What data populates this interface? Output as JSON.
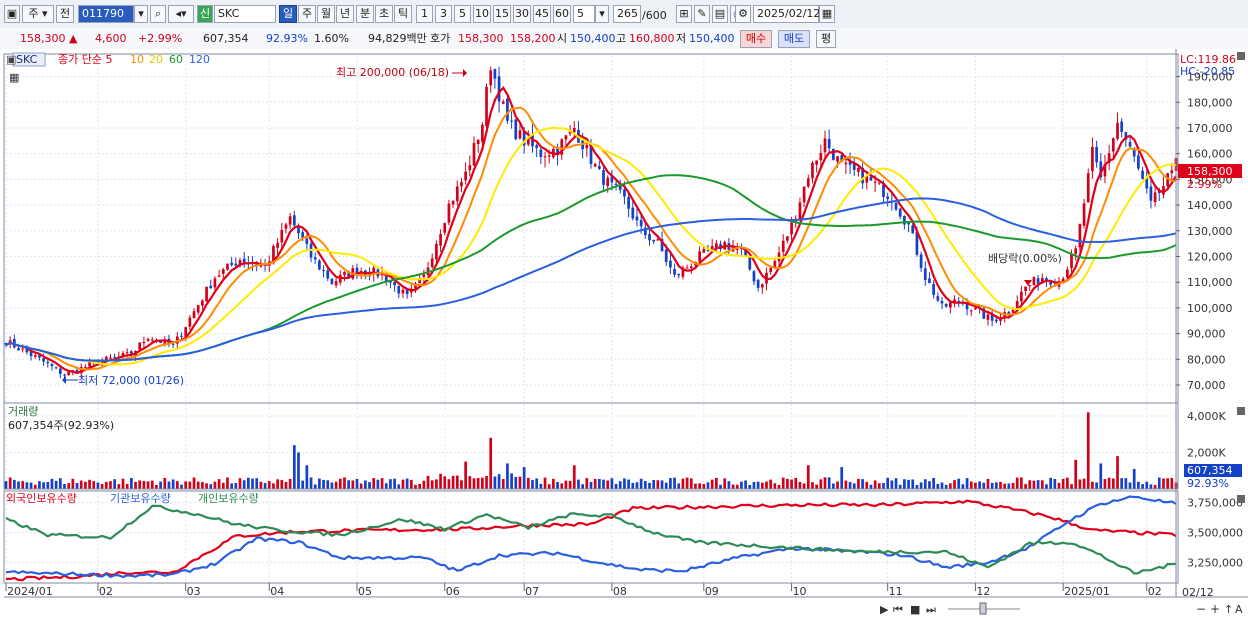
{
  "toolbar": {
    "b_period1": "주",
    "b_prev": "전",
    "code": "011790",
    "b_info": "신",
    "name": "SKC",
    "p_day": "일",
    "p_week": "주",
    "p_month": "월",
    "p_year": "년",
    "p_min": "분",
    "p_sec": "초",
    "p_tick": "틱",
    "n1": "1",
    "n3": "3",
    "n5": "5",
    "n10": "10",
    "n15": "15",
    "n30": "30",
    "n45": "45",
    "n60": "60",
    "nsel": "5",
    "count": "265",
    "count_total": "/600",
    "date": "2025/02/12"
  },
  "quote": {
    "price": "158,300 ▲",
    "change": "4,600",
    "change_pct": "+2.99%",
    "volume": "607,354",
    "vol_ratio": "92.93%",
    "turnover": "1.60%",
    "amount": "94,829백만",
    "bid_label": "호가",
    "ask": "158,300",
    "bid": "158,200",
    "open_label": "시",
    "open": "150,400",
    "high_label": "고",
    "high": "160,800",
    "low_label": "저",
    "low": "150,400",
    "buy": "매수",
    "sell": "매도",
    "eval": "평"
  },
  "colors": {
    "up": "#d0021b",
    "down": "#1540c8",
    "ma5": "#e0001a",
    "ma10": "#ff8c00",
    "ma20": "#ffea00",
    "ma60": "#1a9a2a",
    "ma120": "#2b5fe0"
  },
  "chart_data": {
    "type": "candlestick",
    "title": "SKC",
    "legend": [
      {
        "name": "종가 단순 5",
        "color": "#e0001a"
      },
      {
        "name": "10",
        "color": "#ff8c00"
      },
      {
        "name": "20",
        "color": "#e6c800"
      },
      {
        "name": "60",
        "color": "#1a9a2a"
      },
      {
        "name": "120",
        "color": "#2b5fe0"
      }
    ],
    "ylim": [
      63000,
      198000
    ],
    "yticks": [
      190000,
      180000,
      170000,
      160000,
      150000,
      140000,
      130000,
      120000,
      110000,
      100000,
      90000,
      80000,
      70000
    ],
    "ytick_labels": [
      "190,000",
      "180,000",
      "170,000",
      "160,000",
      "150,000",
      "140,000",
      "130,000",
      "120,000",
      "110,000",
      "100,000",
      "90,000",
      "80,000",
      "70,000"
    ],
    "lc_label": "LC:119.86",
    "hc_label": "HC:-20.85",
    "last_price_label": "158,300",
    "last_pct_label": "2.99%",
    "high_annotation": "최고 200,000 (06/18)",
    "low_annotation": "최저 72,000 (01/26)",
    "dividend_annotation": "배당락(0.00%)",
    "x_months": [
      "2024/01",
      "02",
      "03",
      "04",
      "05",
      "06",
      "07",
      "08",
      "09",
      "10",
      "11",
      "12",
      "2025/01",
      "02"
    ],
    "x_right_label": "02/12",
    "close_anchors": [
      [
        0,
        87000
      ],
      [
        8,
        80000
      ],
      [
        14,
        74000
      ],
      [
        22,
        79000
      ],
      [
        30,
        82000
      ],
      [
        34,
        89000
      ],
      [
        40,
        85000
      ],
      [
        44,
        96000
      ],
      [
        50,
        112000
      ],
      [
        56,
        119000
      ],
      [
        62,
        116000
      ],
      [
        68,
        135000
      ],
      [
        73,
        120000
      ],
      [
        78,
        110000
      ],
      [
        84,
        115000
      ],
      [
        90,
        113000
      ],
      [
        96,
        104000
      ],
      [
        100,
        112000
      ],
      [
        106,
        140000
      ],
      [
        110,
        152000
      ],
      [
        114,
        172000
      ],
      [
        116,
        195000
      ],
      [
        120,
        172000
      ],
      [
        124,
        165000
      ],
      [
        128,
        160000
      ],
      [
        132,
        162000
      ],
      [
        136,
        170000
      ],
      [
        142,
        152000
      ],
      [
        148,
        142000
      ],
      [
        152,
        130000
      ],
      [
        156,
        125000
      ],
      [
        160,
        112000
      ],
      [
        166,
        120000
      ],
      [
        172,
        125000
      ],
      [
        176,
        122000
      ],
      [
        180,
        108000
      ],
      [
        184,
        118000
      ],
      [
        188,
        132000
      ],
      [
        192,
        152000
      ],
      [
        196,
        165000
      ],
      [
        200,
        155000
      ],
      [
        204,
        152000
      ],
      [
        208,
        148000
      ],
      [
        212,
        143000
      ],
      [
        216,
        132000
      ],
      [
        220,
        112000
      ],
      [
        224,
        100000
      ],
      [
        228,
        103000
      ],
      [
        232,
        99000
      ],
      [
        236,
        95000
      ],
      [
        240,
        99000
      ],
      [
        244,
        108000
      ],
      [
        248,
        112000
      ],
      [
        252,
        110000
      ],
      [
        256,
        122000
      ],
      [
        260,
        160000
      ],
      [
        262,
        150000
      ],
      [
        266,
        172000
      ],
      [
        270,
        158000
      ],
      [
        274,
        140000
      ],
      [
        278,
        150000
      ],
      [
        280,
        152000
      ]
    ],
    "volume": {
      "label": "거래량",
      "current": "607,354주(92.93%)",
      "ylim": [
        0,
        4600000
      ],
      "yticks": [
        4000000,
        2000000
      ],
      "ytick_labels": [
        "4,000K",
        "2,000K"
      ],
      "last_label": "607,354",
      "last_pct": "92.93%",
      "spikes": [
        [
          69,
          2400000
        ],
        [
          70,
          2000000
        ],
        [
          72,
          1300000
        ],
        [
          110,
          1500000
        ],
        [
          116,
          2800000
        ],
        [
          120,
          1400000
        ],
        [
          124,
          1200000
        ],
        [
          136,
          1300000
        ],
        [
          192,
          1300000
        ],
        [
          200,
          1200000
        ],
        [
          256,
          1600000
        ],
        [
          259,
          4200000
        ],
        [
          262,
          1400000
        ],
        [
          266,
          1800000
        ],
        [
          270,
          1100000
        ]
      ]
    },
    "holdings": {
      "legend": [
        "외국인보유수량",
        "기관보유수량",
        "개인보유수량"
      ],
      "colors": [
        "#e0001a",
        "#2b5fe0",
        "#2e8b57"
      ],
      "ylim": [
        3080000,
        3830000
      ],
      "yticks": [
        3750000,
        3500000,
        3250000
      ],
      "ytick_labels": [
        "3,750,000",
        "3,500,000",
        "3,250,000"
      ],
      "series": [
        {
          "name": "외국인보유수량",
          "points": [
            [
              0,
              3110000
            ],
            [
              15,
              3130000
            ],
            [
              30,
              3170000
            ],
            [
              40,
              3170000
            ],
            [
              55,
              3470000
            ],
            [
              70,
              3510000
            ],
            [
              90,
              3520000
            ],
            [
              110,
              3530000
            ],
            [
              125,
              3560000
            ],
            [
              140,
              3570000
            ],
            [
              150,
              3700000
            ],
            [
              160,
              3710000
            ],
            [
              175,
              3720000
            ],
            [
              190,
              3730000
            ],
            [
              210,
              3730000
            ],
            [
              230,
              3760000
            ],
            [
              240,
              3700000
            ],
            [
              250,
              3630000
            ],
            [
              260,
              3520000
            ],
            [
              270,
              3500000
            ],
            [
              280,
              3480000
            ]
          ]
        },
        {
          "name": "기관보유수량",
          "points": [
            [
              0,
              3170000
            ],
            [
              10,
              3160000
            ],
            [
              20,
              3150000
            ],
            [
              30,
              3140000
            ],
            [
              40,
              3150000
            ],
            [
              50,
              3240000
            ],
            [
              60,
              3450000
            ],
            [
              70,
              3420000
            ],
            [
              80,
              3290000
            ],
            [
              90,
              3290000
            ],
            [
              100,
              3290000
            ],
            [
              108,
              3180000
            ],
            [
              118,
              3310000
            ],
            [
              132,
              3330000
            ],
            [
              142,
              3250000
            ],
            [
              152,
              3190000
            ],
            [
              162,
              3180000
            ],
            [
              175,
              3290000
            ],
            [
              188,
              3370000
            ],
            [
              205,
              3340000
            ],
            [
              215,
              3310000
            ],
            [
              225,
              3210000
            ],
            [
              235,
              3250000
            ],
            [
              245,
              3380000
            ],
            [
              255,
              3610000
            ],
            [
              262,
              3740000
            ],
            [
              270,
              3800000
            ],
            [
              280,
              3740000
            ]
          ]
        },
        {
          "name": "개인보유수량",
          "points": [
            [
              0,
              3610000
            ],
            [
              10,
              3480000
            ],
            [
              25,
              3460000
            ],
            [
              35,
              3720000
            ],
            [
              45,
              3660000
            ],
            [
              55,
              3570000
            ],
            [
              65,
              3520000
            ],
            [
              80,
              3480000
            ],
            [
              95,
              3610000
            ],
            [
              105,
              3530000
            ],
            [
              115,
              3650000
            ],
            [
              125,
              3540000
            ],
            [
              135,
              3650000
            ],
            [
              145,
              3640000
            ],
            [
              155,
              3500000
            ],
            [
              165,
              3420000
            ],
            [
              175,
              3400000
            ],
            [
              190,
              3370000
            ],
            [
              205,
              3340000
            ],
            [
              215,
              3340000
            ],
            [
              225,
              3340000
            ],
            [
              235,
              3210000
            ],
            [
              245,
              3410000
            ],
            [
              255,
              3420000
            ],
            [
              262,
              3310000
            ],
            [
              270,
              3160000
            ],
            [
              280,
              3240000
            ]
          ]
        }
      ]
    }
  }
}
